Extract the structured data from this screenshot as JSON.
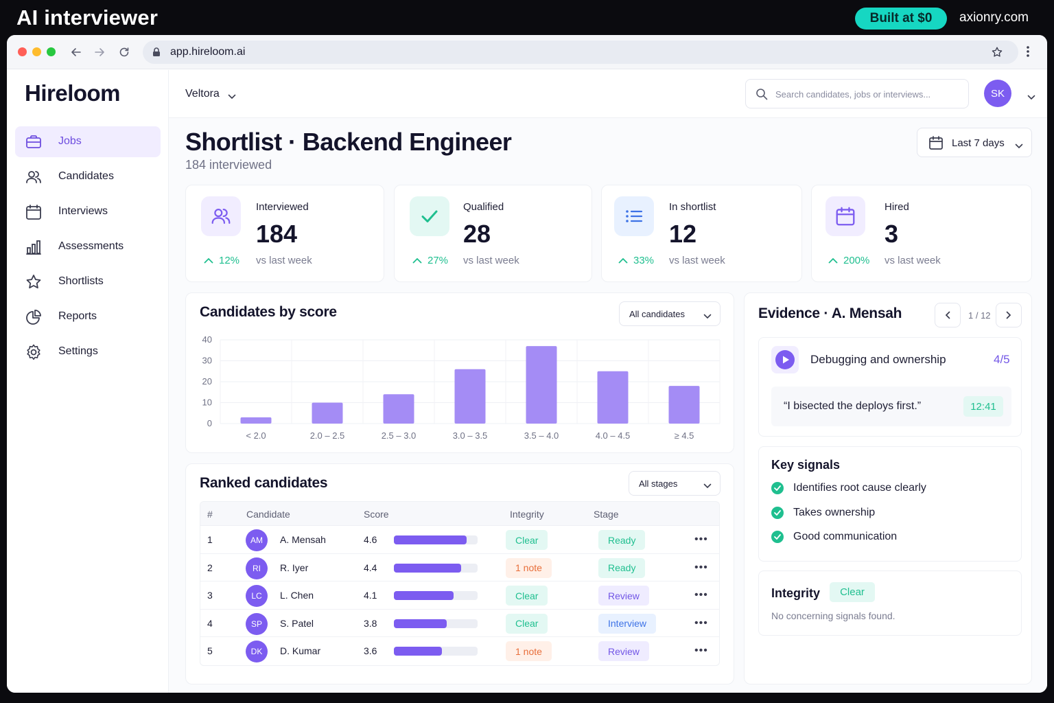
{
  "promo": {
    "title": "AI interviewer",
    "badge": "Built at $0",
    "site": "axionry.com"
  },
  "browser": {
    "url": "app.hireloom.ai"
  },
  "app": {
    "logo": "Hireloom",
    "org": "Veltora",
    "search_placeholder": "Search candidates, jobs or interviews...",
    "user_initials": "SK"
  },
  "sidebar": {
    "items": [
      {
        "label": "Jobs",
        "icon": "briefcase-icon",
        "active": true
      },
      {
        "label": "Candidates",
        "icon": "users-icon"
      },
      {
        "label": "Interviews",
        "icon": "calendar-icon"
      },
      {
        "label": "Assessments",
        "icon": "bar-chart-icon"
      },
      {
        "label": "Shortlists",
        "icon": "star-icon"
      },
      {
        "label": "Reports",
        "icon": "pie-chart-icon"
      },
      {
        "label": "Settings",
        "icon": "gear-icon"
      }
    ]
  },
  "header": {
    "title": "Shortlist · Backend Engineer",
    "subtitle": "184 interviewed",
    "date_range": "Last 7 days"
  },
  "stats": [
    {
      "label": "Interviewed",
      "value": "184",
      "delta": "12%",
      "vs": "vs last week",
      "icon": "users-icon",
      "tint": "#f1edff",
      "color": "#7c5cf0"
    },
    {
      "label": "Qualified",
      "value": "28",
      "delta": "27%",
      "vs": "vs last week",
      "icon": "check-icon",
      "tint": "#e3f8f3",
      "color": "#1fbf8f"
    },
    {
      "label": "In shortlist",
      "value": "12",
      "delta": "33%",
      "vs": "vs last week",
      "icon": "list-icon",
      "tint": "#e8f1ff",
      "color": "#3d72e6"
    },
    {
      "label": "Hired",
      "value": "3",
      "delta": "200%",
      "vs": "vs last week",
      "icon": "calendar-icon",
      "tint": "#f1edff",
      "color": "#7c5cf0"
    }
  ],
  "score_chart": {
    "title": "Candidates by score",
    "filter": "All candidates",
    "yticks": [
      "40",
      "30",
      "20",
      "10",
      "0"
    ]
  },
  "chart_data": {
    "type": "bar",
    "categories": [
      "< 2.0",
      "2.0 – 2.5",
      "2.5 – 3.0",
      "3.0 – 3.5",
      "3.5 – 4.0",
      "4.0 – 4.5",
      "≥ 4.5"
    ],
    "values": [
      3,
      10,
      14,
      26,
      37,
      25,
      18
    ],
    "title": "Candidates by score",
    "ylim": [
      0,
      40
    ],
    "grid": true
  },
  "ranked": {
    "title": "Ranked candidates",
    "filter": "All stages",
    "columns": [
      "#",
      "Candidate",
      "Score",
      "Integrity",
      "Stage"
    ],
    "rows": [
      {
        "rank": "1",
        "initials": "AM",
        "name": "A. Mensah",
        "score": "4.6",
        "fill": 0.87,
        "integrity": "Clear",
        "integrity_kind": "clear",
        "stage": "Ready",
        "stage_kind": "ready"
      },
      {
        "rank": "2",
        "initials": "RI",
        "name": "R. Iyer",
        "score": "4.4",
        "fill": 0.8,
        "integrity": "1 note",
        "integrity_kind": "note",
        "stage": "Ready",
        "stage_kind": "ready"
      },
      {
        "rank": "3",
        "initials": "LC",
        "name": "L. Chen",
        "score": "4.1",
        "fill": 0.71,
        "integrity": "Clear",
        "integrity_kind": "clear",
        "stage": "Review",
        "stage_kind": "review"
      },
      {
        "rank": "4",
        "initials": "SP",
        "name": "S. Patel",
        "score": "3.8",
        "fill": 0.63,
        "integrity": "Clear",
        "integrity_kind": "clear",
        "stage": "Interview",
        "stage_kind": "interview"
      },
      {
        "rank": "5",
        "initials": "DK",
        "name": "D. Kumar",
        "score": "3.6",
        "fill": 0.57,
        "integrity": "1 note",
        "integrity_kind": "note",
        "stage": "Review",
        "stage_kind": "review"
      }
    ]
  },
  "evidence": {
    "title": "Evidence · A. Mensah",
    "pager": "1 / 12",
    "clip_title": "Debugging and ownership",
    "clip_score": "4/5",
    "quote": "“I bisected the deploys first.”",
    "timestamp": "12:41",
    "signals_title": "Key signals",
    "signals": [
      "Identifies root cause clearly",
      "Takes ownership",
      "Good communication"
    ],
    "integrity_title": "Integrity",
    "integrity_status": "Clear",
    "integrity_note": "No concerning signals found."
  }
}
